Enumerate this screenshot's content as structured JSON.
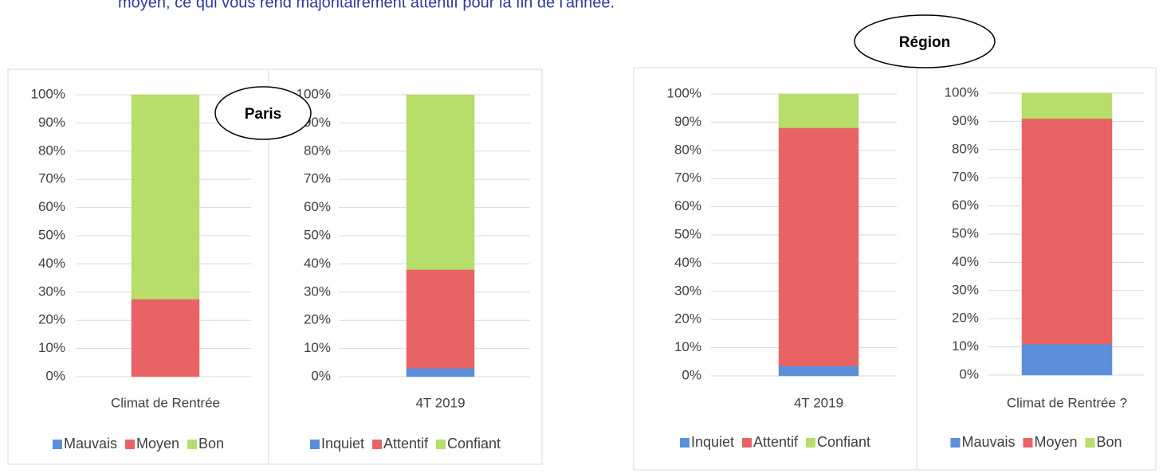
{
  "intro_text": "moyen, ce qui vous rend majoritairement attentif pour la fin de l'année.",
  "region_labels": [
    "Paris",
    "Région"
  ],
  "chart_data": [
    {
      "type": "bar",
      "stacked": true,
      "categories": [
        "Climat de Rentrée"
      ],
      "series": [
        {
          "name": "Mauvais",
          "color": "#5b8fd9",
          "values": [
            0
          ]
        },
        {
          "name": "Moyen",
          "color": "#e86464",
          "values": [
            27.5
          ]
        },
        {
          "name": "Bon",
          "color": "#b7dd6a",
          "values": [
            72.5
          ]
        }
      ],
      "ylim": [
        0,
        100
      ],
      "grid": true,
      "yticks": [
        {
          "value": 0,
          "label": "0%"
        },
        {
          "value": 10,
          "label": "10%"
        },
        {
          "value": 20,
          "label": "20%"
        },
        {
          "value": 30,
          "label": "30%"
        },
        {
          "value": 40,
          "label": "40%"
        },
        {
          "value": 50,
          "label": "50%"
        },
        {
          "value": 60,
          "label": "60%"
        },
        {
          "value": 70,
          "label": "70%"
        },
        {
          "value": 80,
          "label": "80%"
        },
        {
          "value": 90,
          "label": "90%"
        },
        {
          "value": 100,
          "label": "100%"
        }
      ]
    },
    {
      "type": "bar",
      "stacked": true,
      "categories": [
        "4T 2019"
      ],
      "series": [
        {
          "name": "Inquiet",
          "color": "#5b8fd9",
          "values": [
            3
          ]
        },
        {
          "name": "Attentif",
          "color": "#e86464",
          "values": [
            35
          ]
        },
        {
          "name": "Confiant",
          "color": "#b7dd6a",
          "values": [
            62
          ]
        }
      ],
      "ylim": [
        0,
        100
      ],
      "grid": true,
      "yticks": [
        {
          "value": 0,
          "label": "0%"
        },
        {
          "value": 10,
          "label": "10%"
        },
        {
          "value": 20,
          "label": "20%"
        },
        {
          "value": 30,
          "label": "30%"
        },
        {
          "value": 40,
          "label": "40%"
        },
        {
          "value": 50,
          "label": "50%"
        },
        {
          "value": 60,
          "label": "60%"
        },
        {
          "value": 70,
          "label": "70%"
        },
        {
          "value": 80,
          "label": "80%"
        },
        {
          "value": 90,
          "label": "90%"
        },
        {
          "value": 100,
          "label": "100%"
        }
      ]
    },
    {
      "type": "bar",
      "stacked": true,
      "categories": [
        "4T 2019"
      ],
      "series": [
        {
          "name": "Inquiet",
          "color": "#5b8fd9",
          "values": [
            3.5
          ]
        },
        {
          "name": "Attentif",
          "color": "#e86464",
          "values": [
            84.5
          ]
        },
        {
          "name": "Confiant",
          "color": "#b7dd6a",
          "values": [
            12
          ]
        }
      ],
      "ylim": [
        0,
        100
      ],
      "grid": true,
      "yticks": [
        {
          "value": 0,
          "label": "0%"
        },
        {
          "value": 10,
          "label": "10%"
        },
        {
          "value": 20,
          "label": "20%"
        },
        {
          "value": 30,
          "label": "30%"
        },
        {
          "value": 40,
          "label": "40%"
        },
        {
          "value": 50,
          "label": "50%"
        },
        {
          "value": 60,
          "label": "60%"
        },
        {
          "value": 70,
          "label": "70%"
        },
        {
          "value": 80,
          "label": "80%"
        },
        {
          "value": 90,
          "label": "90%"
        },
        {
          "value": 100,
          "label": "100%"
        }
      ]
    },
    {
      "type": "bar",
      "stacked": true,
      "categories": [
        "Climat de Rentrée ?"
      ],
      "series": [
        {
          "name": "Mauvais",
          "color": "#5b8fd9",
          "values": [
            11
          ]
        },
        {
          "name": "Moyen",
          "color": "#e86464",
          "values": [
            80
          ]
        },
        {
          "name": "Bon",
          "color": "#b7dd6a",
          "values": [
            9
          ]
        }
      ],
      "ylim": [
        0,
        100
      ],
      "grid": true,
      "yticks": [
        {
          "value": 0,
          "label": "0%"
        },
        {
          "value": 10,
          "label": "10%"
        },
        {
          "value": 20,
          "label": "20%"
        },
        {
          "value": 30,
          "label": "30%"
        },
        {
          "value": 40,
          "label": "40%"
        },
        {
          "value": 50,
          "label": "50%"
        },
        {
          "value": 60,
          "label": "60%"
        },
        {
          "value": 70,
          "label": "70%"
        },
        {
          "value": 80,
          "label": "80%"
        },
        {
          "value": 90,
          "label": "90%"
        },
        {
          "value": 100,
          "label": "100%"
        }
      ]
    }
  ]
}
